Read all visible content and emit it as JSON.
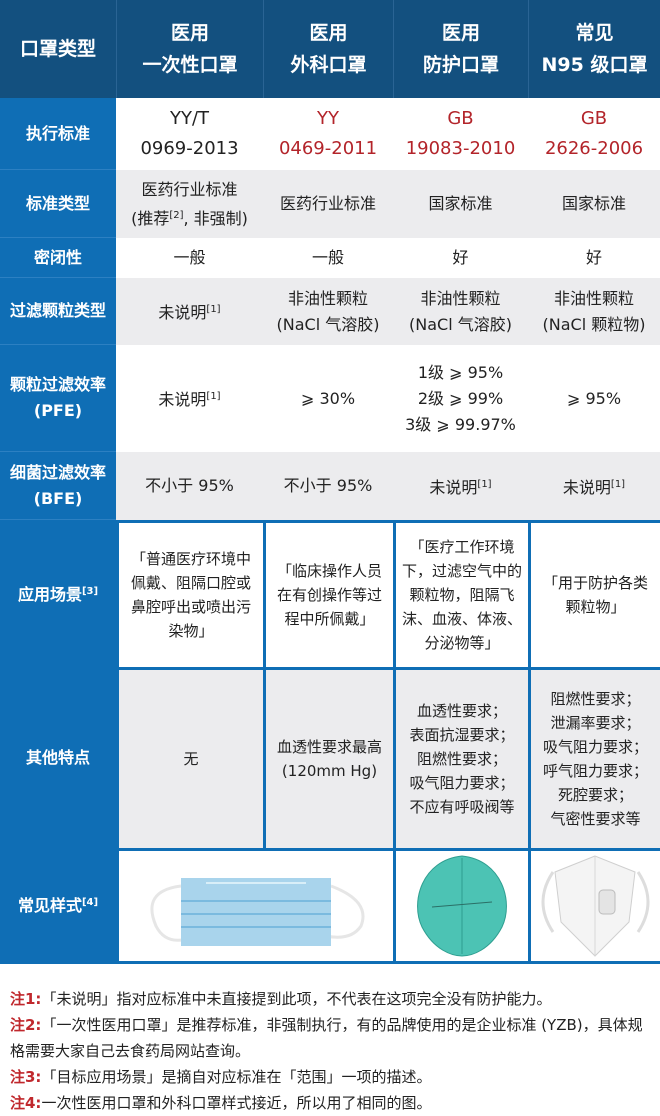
{
  "header": {
    "row_label": "口罩类型",
    "columns": [
      {
        "line1": "医用",
        "line2": "一次性口罩"
      },
      {
        "line1": "医用",
        "line2": "外科口罩"
      },
      {
        "line1": "医用",
        "line2": "防护口罩"
      },
      {
        "line1": "常见",
        "line2": "N95 级口罩"
      }
    ]
  },
  "rows": {
    "standard": {
      "label": "执行标准",
      "values": [
        {
          "line1": "YY/T",
          "line2": "0969-2013"
        },
        {
          "line1": "YY",
          "line2": "0469-2011"
        },
        {
          "line1": "GB",
          "line2": "19083-2010"
        },
        {
          "line1": "GB",
          "line2": "2626-2006"
        }
      ]
    },
    "standard_type": {
      "label": "标准类型",
      "values": [
        {
          "line1": "医药行业标准",
          "line2": "(推荐",
          "sup": "[2]",
          "line2b": ", 非强制)"
        },
        {
          "line1": "医药行业标准"
        },
        {
          "line1": "国家标准"
        },
        {
          "line1": "国家标准"
        }
      ]
    },
    "seal": {
      "label": "密闭性",
      "values": [
        "一般",
        "一般",
        "好",
        "好"
      ]
    },
    "particle_type": {
      "label": "过滤颗粒类型",
      "values": [
        {
          "line1": "未说明",
          "sup": "[1]"
        },
        {
          "line1": "非油性颗粒",
          "line2": "(NaCl 气溶胶)"
        },
        {
          "line1": "非油性颗粒",
          "line2": "(NaCl 气溶胶)"
        },
        {
          "line1": "非油性颗粒",
          "line2": "(NaCl 颗粒物)"
        }
      ]
    },
    "pfe": {
      "label_line1": "颗粒过滤效率",
      "label_line2": "(PFE)",
      "values": [
        {
          "line1": "未说明",
          "sup": "[1]"
        },
        {
          "line1": "⩾ 30%"
        },
        {
          "line1": "1级 ⩾ 95%",
          "line2": "2级 ⩾ 99%",
          "line3": "3级 ⩾ 99.97%"
        },
        {
          "line1": "⩾ 95%"
        }
      ]
    },
    "bfe": {
      "label_line1": "细菌过滤效率",
      "label_line2": "(BFE)",
      "values": [
        {
          "line1": "不小于 95%"
        },
        {
          "line1": "不小于 95%"
        },
        {
          "line1": "未说明",
          "sup": "[1]"
        },
        {
          "line1": "未说明",
          "sup": "[1]"
        }
      ]
    },
    "scenario": {
      "label": "应用场景",
      "label_sup": "[3]",
      "values": [
        "「普通医疗环境中佩戴、阻隔口腔或鼻腔呼出或喷出污染物」",
        "「临床操作人员在有创操作等过程中所佩戴」",
        "「医疗工作环境下，过滤空气中的颗粒物，阻隔飞沫、血液、体液、分泌物等」",
        "「用于防护各类颗粒物」"
      ]
    },
    "features": {
      "label": "其他特点",
      "values": [
        [
          "无"
        ],
        [
          "血透性要求最高",
          "(120mm Hg)"
        ],
        [
          "血透性要求；",
          "表面抗湿要求；",
          "阻燃性要求；",
          "吸气阻力要求；",
          "不应有呼吸阀等"
        ],
        [
          "阻燃性要求；",
          "泄漏率要求；",
          "吸气阻力要求；",
          "呼气阻力要求；",
          "死腔要求；",
          "气密性要求等"
        ]
      ]
    },
    "style": {
      "label": "常见样式",
      "label_sup": "[4]",
      "images": [
        "flat-surgical-mask-image",
        "green-cup-respirator-image",
        "white-folded-respirator-image"
      ]
    }
  },
  "notes": [
    {
      "tag": "注1:",
      "text": "「未说明」指对应标准中未直接提到此项，不代表在这项完全没有防护能力。"
    },
    {
      "tag": "注2:",
      "text": "「一次性医用口罩」是推荐标准，非强制执行，有的品牌使用的是企业标准 (YZB)，具体规格需要大家自己去食药局网站查询。"
    },
    {
      "tag": "注3:",
      "text": "「目标应用场景」是摘自对应标准在「范围」一项的描述。"
    },
    {
      "tag": "注4:",
      "text": "一次性医用口罩和外科口罩样式接近，所以用了相同的图。"
    }
  ],
  "colors": {
    "header": "#13507f",
    "label_column": "#0f6eb5",
    "highlight_red": "#b3242a",
    "stripe_gray": "#ececee"
  }
}
